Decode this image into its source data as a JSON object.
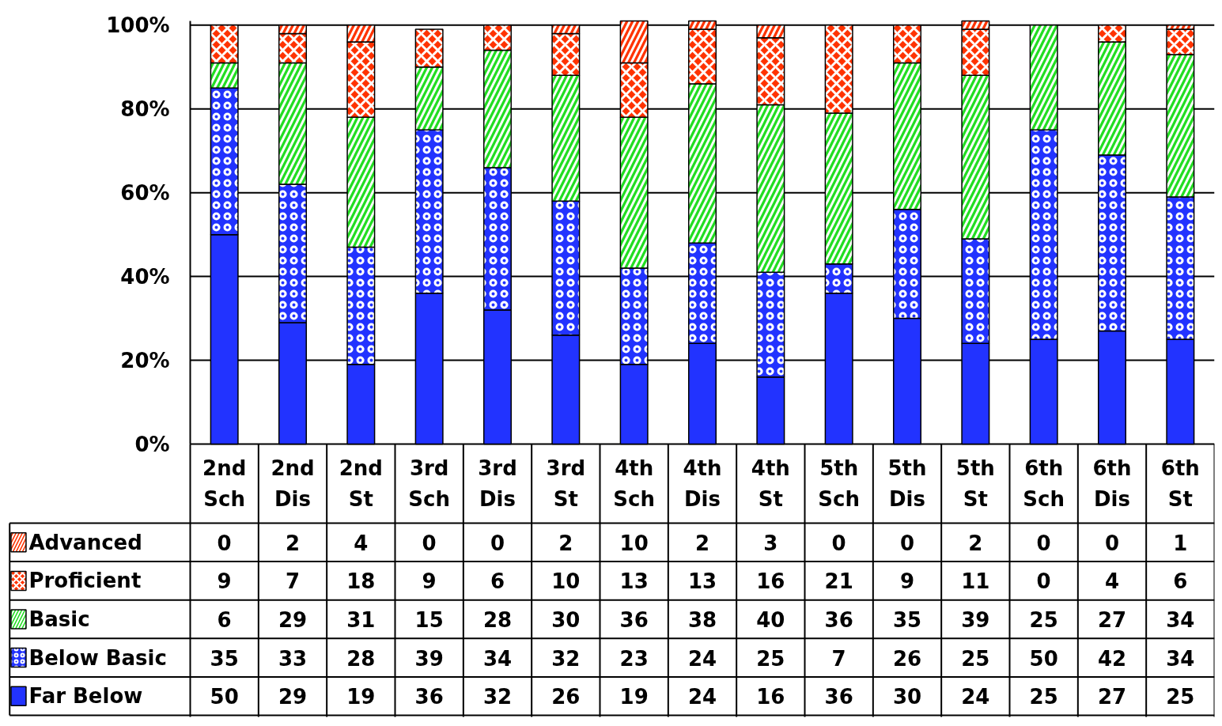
{
  "chart_data": {
    "type": "bar",
    "stacked": true,
    "data_labels": true,
    "grid": "y",
    "legend": "bottom",
    "categories": [
      "2nd Sch",
      "2nd Dis",
      "2nd St",
      "3rd Sch",
      "3rd Dis",
      "3rd St",
      "4th Sch",
      "4th Dis",
      "4th St",
      "5th Sch",
      "5th Dis",
      "5th St",
      "6th Sch",
      "6th Dis",
      "6th St"
    ],
    "ylim": [
      0,
      101
    ],
    "yticks": [
      {
        "value": 0,
        "label": "0%"
      },
      {
        "value": 20,
        "label": "20%"
      },
      {
        "value": 40,
        "label": "40%"
      },
      {
        "value": 60,
        "label": "60%"
      },
      {
        "value": 80,
        "label": "80%"
      },
      {
        "value": 100,
        "label": "100%"
      }
    ],
    "series": [
      {
        "name": "Far Below",
        "color": "#2233ff",
        "values": [
          50,
          29,
          19,
          36,
          32,
          26,
          19,
          24,
          16,
          36,
          30,
          24,
          25,
          27,
          25
        ]
      },
      {
        "name": "Below Basic",
        "color": "#2233ff",
        "values": [
          35,
          33,
          28,
          39,
          34,
          32,
          23,
          24,
          25,
          7,
          26,
          25,
          50,
          42,
          34
        ]
      },
      {
        "name": "Basic",
        "color": "#22dd22",
        "values": [
          6,
          29,
          31,
          15,
          28,
          30,
          36,
          38,
          40,
          36,
          35,
          39,
          25,
          27,
          34
        ]
      },
      {
        "name": "Proficient",
        "color": "#ff3300",
        "values": [
          9,
          7,
          18,
          9,
          6,
          10,
          13,
          13,
          16,
          21,
          9,
          11,
          0,
          4,
          6
        ]
      },
      {
        "name": "Advanced",
        "color": "#ff3300",
        "values": [
          0,
          2,
          4,
          0,
          0,
          2,
          10,
          2,
          3,
          0,
          0,
          2,
          0,
          0,
          1
        ]
      }
    ]
  }
}
